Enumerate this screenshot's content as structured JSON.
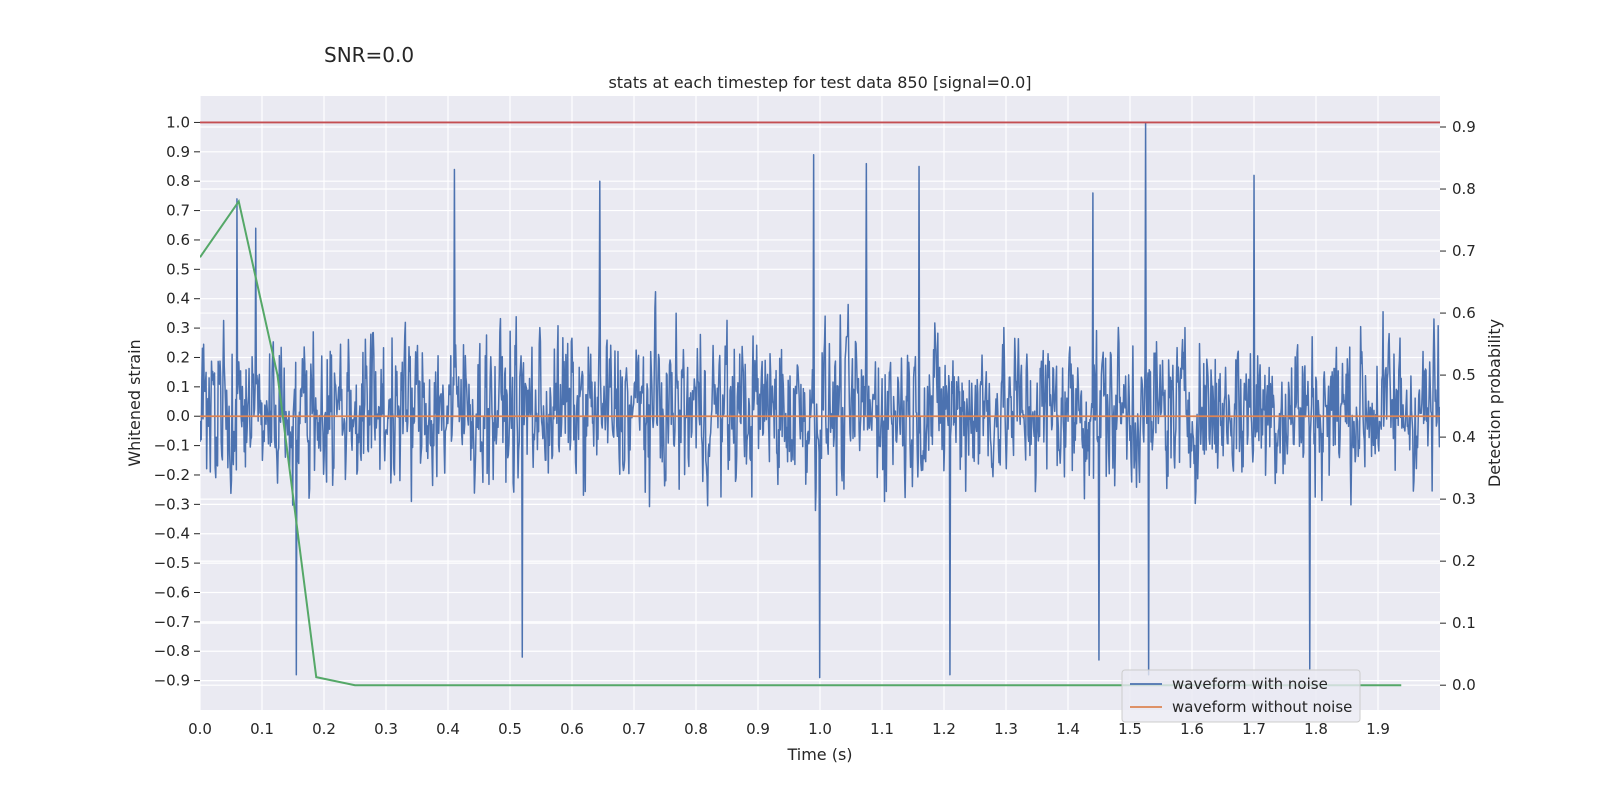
{
  "figure": {
    "suptitle": "SNR=0.0"
  },
  "chart_data": {
    "type": "line",
    "title": "stats at each timestep for test data 850 [signal=0.0]",
    "xlabel": "Time (s)",
    "ylabel": "Whitened strain",
    "ylabel_right": "Detection probability",
    "xlim": [
      0.0,
      2.0
    ],
    "ylim": [
      -1.0,
      1.09
    ],
    "ylim_right": [
      -0.04,
      0.95
    ],
    "x_ticks": [
      "0.0",
      "0.1",
      "0.2",
      "0.3",
      "0.4",
      "0.5",
      "0.6",
      "0.7",
      "0.8",
      "0.9",
      "1.0",
      "1.1",
      "1.2",
      "1.3",
      "1.4",
      "1.5",
      "1.6",
      "1.7",
      "1.8",
      "1.9"
    ],
    "y_ticks": [
      "1.0",
      "0.9",
      "0.8",
      "0.7",
      "0.6",
      "0.5",
      "0.4",
      "0.3",
      "0.2",
      "0.1",
      "0.0",
      "−0.1",
      "−0.2",
      "−0.3",
      "−0.4",
      "−0.5",
      "−0.6",
      "−0.7",
      "−0.8",
      "−0.9"
    ],
    "y_ticks_right": [
      "0.9",
      "0.8",
      "0.7",
      "0.6",
      "0.5",
      "0.4",
      "0.3",
      "0.2",
      "0.1",
      "0.0"
    ],
    "grid": true,
    "legend_position": "lower-right",
    "colors": {
      "background": "#eaeaf2",
      "grid": "#ffffff",
      "noise": "#4c72b0",
      "clean": "#dd8452",
      "prob": "#55a868",
      "threshold": "#c44e52"
    },
    "series": [
      {
        "name": "waveform with noise",
        "axis": "left",
        "style": "dense-noise",
        "x_range": [
          0.0,
          2.0
        ],
        "n_points": 2048,
        "typical_range": [
          -0.55,
          0.6
        ],
        "peaks": [
          {
            "x": 0.06,
            "y": 0.74
          },
          {
            "x": 0.09,
            "y": 0.64
          },
          {
            "x": 0.155,
            "y": -0.88
          },
          {
            "x": 0.41,
            "y": 0.84
          },
          {
            "x": 0.52,
            "y": -0.82
          },
          {
            "x": 0.645,
            "y": 0.8
          },
          {
            "x": 0.99,
            "y": 0.89
          },
          {
            "x": 1.0,
            "y": 0.9
          },
          {
            "x": 1.0,
            "y": -0.89
          },
          {
            "x": 1.075,
            "y": 0.86
          },
          {
            "x": 1.16,
            "y": 0.85
          },
          {
            "x": 1.21,
            "y": -0.88
          },
          {
            "x": 1.44,
            "y": 0.76
          },
          {
            "x": 1.45,
            "y": -0.83
          },
          {
            "x": 1.525,
            "y": 1.0
          },
          {
            "x": 1.53,
            "y": -0.88
          },
          {
            "x": 1.7,
            "y": 0.82
          },
          {
            "x": 1.79,
            "y": -0.86
          }
        ]
      },
      {
        "name": "waveform without noise",
        "axis": "left",
        "x": [
          0.0,
          2.0
        ],
        "y": [
          0.0,
          0.0
        ]
      },
      {
        "name": "detection probability",
        "axis": "right",
        "x": [
          0.0,
          0.0625,
          0.125,
          0.1875,
          0.25,
          0.3125,
          1.0,
          1.5,
          1.9375
        ],
        "y": [
          0.69,
          0.78,
          0.5,
          0.013,
          0.0,
          0.0,
          0.0,
          0.0,
          0.0
        ]
      },
      {
        "name": "threshold",
        "axis": "left",
        "x": [
          0.0,
          2.0
        ],
        "y": [
          1.0,
          1.0
        ]
      }
    ]
  }
}
